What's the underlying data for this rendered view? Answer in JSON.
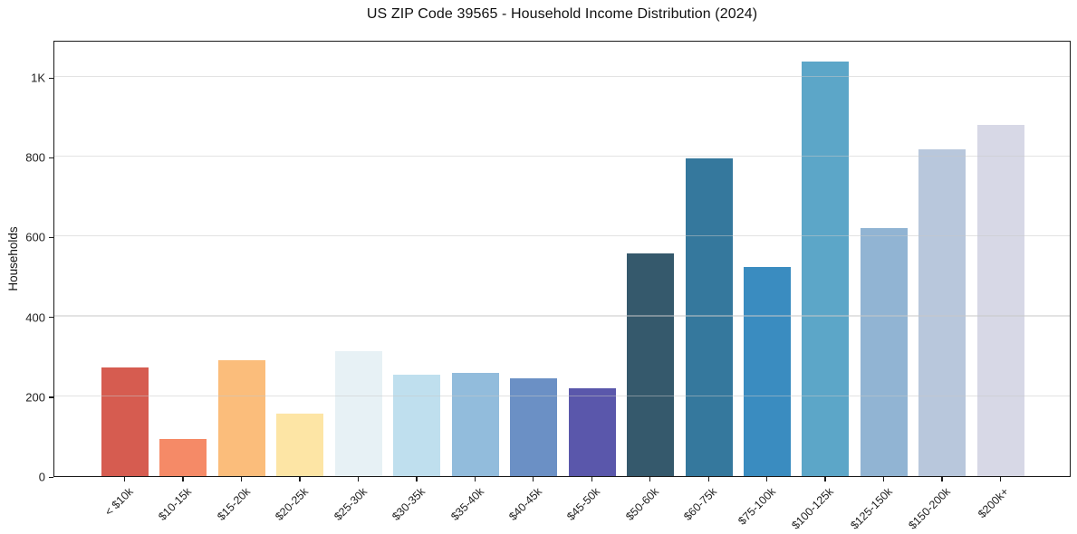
{
  "chart_data": {
    "type": "bar",
    "title": "US ZIP Code 39565 - Household Income Distribution (2024)",
    "xlabel": "",
    "ylabel": "Households",
    "ylim": [
      0,
      1093
    ],
    "grid": true,
    "grid_on_top_of_bars": true,
    "legend_position": "none",
    "background": "#ffffff",
    "axis_color": "#1a1a1a",
    "grid_color": "#e8e8e8",
    "yticks": [
      {
        "value": 0,
        "label": "0"
      },
      {
        "value": 200,
        "label": "200"
      },
      {
        "value": 400,
        "label": "400"
      },
      {
        "value": 600,
        "label": "600"
      },
      {
        "value": 800,
        "label": "800"
      },
      {
        "value": 1000,
        "label": "1K"
      }
    ],
    "categories": [
      "< $10k",
      "$10-15k",
      "$15-20k",
      "$20-25k",
      "$25-30k",
      "$30-35k",
      "$35-40k",
      "$40-45k",
      "$45-50k",
      "$50-60k",
      "$60-75k",
      "$75-100k",
      "$100-125k",
      "$125-150k",
      "$150-200k",
      "$200k+"
    ],
    "values": [
      272,
      93,
      290,
      156,
      312,
      254,
      258,
      245,
      219,
      558,
      795,
      524,
      1038,
      622,
      819,
      879
    ],
    "bar_colors": [
      "#d65c50",
      "#f58a67",
      "#fbbd7b",
      "#fde5a5",
      "#e7f1f5",
      "#bfdfee",
      "#92bcdc",
      "#6b90c5",
      "#5a57ab",
      "#35596c",
      "#35789d",
      "#3a8cc0",
      "#5ca6c8",
      "#91b4d3",
      "#b8c7dc",
      "#d7d8e6"
    ]
  }
}
